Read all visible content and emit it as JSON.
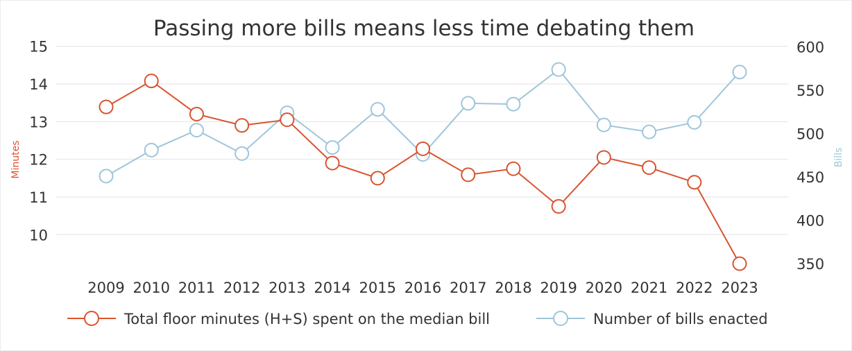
{
  "chart_data": {
    "type": "line",
    "title": "Passing more bills means less time debating them",
    "categories": [
      "2009",
      "2010",
      "2011",
      "2012",
      "2013",
      "2014",
      "2015",
      "2016",
      "2017",
      "2018",
      "2019",
      "2020",
      "2021",
      "2022",
      "2023"
    ],
    "y_left": {
      "label": "Minutes",
      "range": [
        9,
        15
      ],
      "ticks": [
        15,
        14,
        13,
        12,
        11,
        10
      ],
      "color": "#d9532f"
    },
    "y_right": {
      "label": "Bills",
      "range": [
        340,
        600
      ],
      "ticks": [
        600,
        550,
        500,
        450,
        400,
        350
      ],
      "color": "#9ec5db"
    },
    "grid": true,
    "legend_position": "bottom",
    "series": [
      {
        "name": "Total floor minutes (H+S) spent on the median bill",
        "axis": "left",
        "color": "#d9532f",
        "values": [
          13.39,
          14.08,
          13.2,
          12.9,
          13.05,
          11.9,
          11.5,
          12.28,
          11.59,
          11.75,
          10.75,
          12.05,
          11.78,
          11.39,
          9.23
        ]
      },
      {
        "name": "Number of bills enacted",
        "axis": "right",
        "color": "#9ec5db",
        "values": [
          451,
          481,
          504,
          477,
          524,
          484,
          528,
          476,
          535,
          534,
          574,
          510,
          502,
          513,
          571
        ]
      }
    ]
  }
}
